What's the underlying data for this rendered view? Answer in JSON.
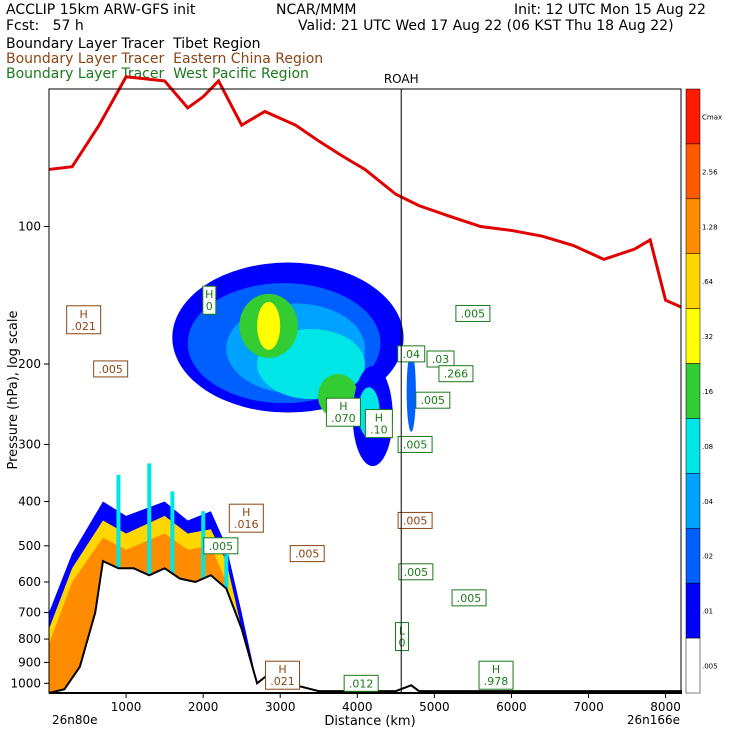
{
  "header": {
    "line1_left": "ACCLIP 15km ARW-GFS init",
    "line1_center": "NCAR/MMM",
    "line1_right": "Init: 12 UTC Mon 15 Aug 22",
    "line2_left": "Fcst:   57 h",
    "line2_right": "Valid: 21 UTC Wed 17 Aug 22 (06 KST Thu 18 Aug 22)",
    "legend": [
      {
        "text": "Boundary Layer Tracer  Tibet Region",
        "color": "#000000"
      },
      {
        "text": "Boundary Layer Tracer  Eastern China Region",
        "color": "#8B4513"
      },
      {
        "text": "Boundary Layer Tracer  West Pacific Region",
        "color": "#1a7a1a"
      }
    ]
  },
  "chart_data": {
    "type": "cross-section",
    "xlabel": "Distance (km)",
    "ylabel": "Pressure (hPa), log scale",
    "x_ticks": [
      "1000",
      "2000",
      "3000",
      "4000",
      "5000",
      "6000",
      "7000",
      "8000"
    ],
    "y_ticks": [
      "100",
      "200",
      "300",
      "400",
      "500",
      "600",
      "700",
      "800",
      "900",
      "1000"
    ],
    "xlim": [
      0,
      8200
    ],
    "ylim": [
      1050,
      50
    ],
    "y_scale": "log",
    "left_endpoint": "26n80e",
    "right_endpoint": "26n166e",
    "marker": {
      "label": "ROAH",
      "x": 4570
    },
    "colorbar": {
      "levels": [
        "Cmax",
        "2.56",
        "1.28",
        ".64",
        ".32",
        ".16",
        ".08",
        ".04",
        ".02",
        ".01",
        ".005"
      ],
      "colors": [
        "#ff1a00",
        "#ff5a00",
        "#ff8c00",
        "#ffd700",
        "#ffff00",
        "#33cc33",
        "#00e5e5",
        "#00a3ff",
        "#0060ff",
        "#0000ff",
        "#ffffff"
      ]
    },
    "tropopause_series": {
      "name": "",
      "color": "#e00000",
      "x": [
        0,
        300,
        650,
        1000,
        1500,
        1800,
        2000,
        2200,
        2500,
        2800,
        3200,
        3500,
        3800,
        4100,
        4500,
        4800,
        5200,
        5600,
        6000,
        6400,
        6800,
        7200,
        7600,
        7800,
        8000,
        8200
      ],
      "p": [
        75,
        74,
        60,
        47,
        48,
        55,
        52,
        48,
        60,
        56,
        60,
        65,
        70,
        75,
        85,
        90,
        95,
        100,
        102,
        105,
        110,
        118,
        112,
        107,
        145,
        150
      ]
    },
    "annotations": [
      {
        "text": "H\n.021",
        "x": 450,
        "p": 160,
        "color": "#8B4513"
      },
      {
        "text": ".005",
        "x": 800,
        "p": 205,
        "color": "#8B4513"
      },
      {
        "text": "H\n0",
        "x": 2080,
        "p": 145,
        "color": "#1a7a1a"
      },
      {
        "text": "H\n.070",
        "x": 3820,
        "p": 255,
        "color": "#1a7a1a"
      },
      {
        "text": "H\n.10",
        "x": 4280,
        "p": 270,
        "color": "#1a7a1a"
      },
      {
        "text": "H\n.016",
        "x": 2560,
        "p": 435,
        "color": "#8B4513"
      },
      {
        "text": ".005",
        "x": 2230,
        "p": 500,
        "color": "#1a7a1a"
      },
      {
        "text": ".005",
        "x": 3350,
        "p": 520,
        "color": "#8B4513"
      },
      {
        "text": ".005",
        "x": 4750,
        "p": 300,
        "color": "#1a7a1a"
      },
      {
        "text": ".005",
        "x": 4980,
        "p": 240,
        "color": "#1a7a1a"
      },
      {
        "text": ".005",
        "x": 5500,
        "p": 155,
        "color": "#1a7a1a"
      },
      {
        "text": ".04",
        "x": 4700,
        "p": 190,
        "color": "#1a7a1a"
      },
      {
        "text": ".03",
        "x": 5080,
        "p": 195,
        "color": "#1a7a1a"
      },
      {
        "text": ".266",
        "x": 5280,
        "p": 210,
        "color": "#1a7a1a"
      },
      {
        "text": ".005",
        "x": 4750,
        "p": 440,
        "color": "#8B4513"
      },
      {
        "text": ".005",
        "x": 4760,
        "p": 570,
        "color": "#1a7a1a"
      },
      {
        "text": ".005",
        "x": 5450,
        "p": 650,
        "color": "#1a7a1a"
      },
      {
        "text": "L\n0",
        "x": 4580,
        "p": 790,
        "color": "#1a7a1a"
      },
      {
        "text": "H\n.978",
        "x": 5800,
        "p": 960,
        "color": "#1a7a1a"
      },
      {
        "text": "H\n.021",
        "x": 3030,
        "p": 960,
        "color": "#8B4513"
      },
      {
        "text": ".012",
        "x": 4050,
        "p": 1000,
        "color": "#1a7a1a"
      }
    ]
  }
}
